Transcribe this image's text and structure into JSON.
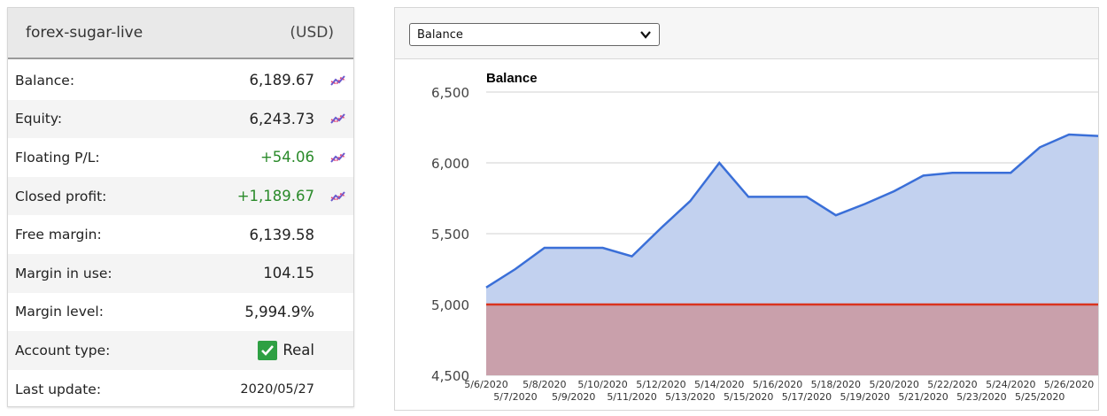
{
  "account": {
    "name": "forex-sugar-live",
    "currency": "(USD)",
    "rows": [
      {
        "label": "Balance:",
        "value": "6,189.67"
      },
      {
        "label": "Equity:",
        "value": "6,243.73"
      },
      {
        "label": "Floating P/L:",
        "value": "+54.06"
      },
      {
        "label": "Closed profit:",
        "value": "+1,189.67"
      },
      {
        "label": "Free margin:",
        "value": "6,139.58"
      },
      {
        "label": "Margin in use:",
        "value": "104.15"
      },
      {
        "label": "Margin level:",
        "value": "5,994.9%"
      },
      {
        "label": "Account type:",
        "value": "Real"
      },
      {
        "label": "Last update:",
        "value": "2020/05/27"
      }
    ],
    "colors": {
      "positive": "#2a8a2a",
      "check": "#2ea043"
    },
    "icons": {
      "chart": "chart-line-icon",
      "check": "checkmark-icon"
    }
  },
  "chart_panel": {
    "selector_value": "Balance"
  },
  "chart_data": {
    "type": "area",
    "title": "Balance",
    "xlabel": "",
    "ylabel": "",
    "ylim": [
      4500,
      6500
    ],
    "yticks": [
      "6,500",
      "6,000",
      "5,500",
      "5,000",
      "4,500"
    ],
    "grid": true,
    "x": [
      "5/6/2020",
      "5/7/2020",
      "5/8/2020",
      "5/9/2020",
      "5/10/2020",
      "5/11/2020",
      "5/12/2020",
      "5/13/2020",
      "5/14/2020",
      "5/15/2020",
      "5/16/2020",
      "5/17/2020",
      "5/18/2020",
      "5/19/2020",
      "5/20/2020",
      "5/21/2020",
      "5/22/2020",
      "5/23/2020",
      "5/24/2020",
      "5/25/2020",
      "5/26/2020",
      "5/27/2020"
    ],
    "xtick_labels_top": [
      "5/6/2020",
      "5/8/2020",
      "5/10/2020",
      "5/12/2020",
      "5/14/2020",
      "5/16/2020",
      "5/18/2020",
      "5/20/2020",
      "5/22/2020",
      "5/24/2020",
      "5/26/2020"
    ],
    "xtick_labels_bottom": [
      "5/7/2020",
      "5/9/2020",
      "5/11/2020",
      "5/13/2020",
      "5/15/2020",
      "5/17/2020",
      "5/19/2020",
      "5/21/2020",
      "5/23/2020",
      "5/25/2020"
    ],
    "series": [
      {
        "values": [
          5120,
          5250,
          5400,
          5400,
          5400,
          5340,
          5540,
          5730,
          6000,
          5760,
          5760,
          5760,
          5630,
          5710,
          5800,
          5910,
          5930,
          5930,
          5930,
          6110,
          6200,
          6190
        ],
        "color": "#3a6fd8",
        "fill": "#c2d1ef"
      },
      {
        "values": [
          5000,
          5000,
          5000,
          5000,
          5000,
          5000,
          5000,
          5000,
          5000,
          5000,
          5000,
          5000,
          5000,
          5000,
          5000,
          5000,
          5000,
          5000,
          5000,
          5000,
          5000,
          5000
        ],
        "color": "#d9341f",
        "fill": "#c9a0ab"
      }
    ]
  }
}
